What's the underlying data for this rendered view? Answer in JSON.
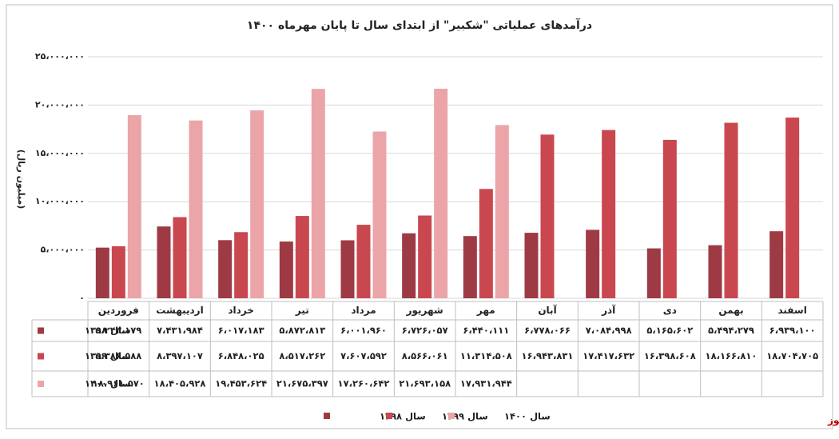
{
  "chart_data": {
    "type": "bar",
    "title": "درآمدهای عملیاتی \"شکبیر\" از ابتدای سال تا پایان مهرماه ۱۴۰۰",
    "y_label": "(میلیون ریال)",
    "source": "بورس نیوز",
    "categories": [
      "فروردین",
      "اردیبهشت",
      "خرداد",
      "تیر",
      "مرداد",
      "شهریور",
      "مهر",
      "آبان",
      "آذر",
      "دی",
      "بهمن",
      "اسفند"
    ],
    "series": [
      {
        "name": "سال ۱۳۹۸",
        "color": "#9e3a44",
        "values": [
          5243179,
          7431984,
          6017183,
          5872813,
          6001960,
          6726057,
          6440111,
          6778066,
          7084998,
          5165602,
          5494279,
          6939100
        ],
        "value_labels": [
          "۵،۲۴۳،۱۷۹",
          "۷،۴۳۱،۹۸۴",
          "۶،۰۱۷،۱۸۳",
          "۵،۸۷۲،۸۱۳",
          "۶،۰۰۱،۹۶۰",
          "۶،۷۲۶،۰۵۷",
          "۶،۴۴۰،۱۱۱",
          "۶،۷۷۸،۰۶۶",
          "۷،۰۸۴،۹۹۸",
          "۵،۱۶۵،۶۰۲",
          "۵،۴۹۴،۲۷۹",
          "۶،۹۳۹،۱۰۰"
        ]
      },
      {
        "name": "سال ۱۳۹۹",
        "color": "#c9474f",
        "values": [
          5386588,
          8397107,
          6848025,
          8517262,
          7607592,
          8566061,
          11314508,
          16943831,
          17417632,
          16398608,
          18166810,
          18704705
        ],
        "value_labels": [
          "۵،۳۸۶،۵۸۸",
          "۸،۳۹۷،۱۰۷",
          "۶،۸۴۸،۰۲۵",
          "۸،۵۱۷،۲۶۲",
          "۷،۶۰۷،۵۹۲",
          "۸،۵۶۶،۰۶۱",
          "۱۱،۳۱۴،۵۰۸",
          "۱۶،۹۴۳،۸۳۱",
          "۱۷،۴۱۷،۶۳۲",
          "۱۶،۳۹۸،۶۰۸",
          "۱۸،۱۶۶،۸۱۰",
          "۱۸،۷۰۴،۷۰۵"
        ]
      },
      {
        "name": "سال ۱۴۰۰",
        "color": "#eba5a8",
        "values": [
          18961570,
          18405928,
          19453624,
          21675397,
          17260642,
          21693158,
          17931944,
          null,
          null,
          null,
          null,
          null
        ],
        "value_labels": [
          "۱۸،۹۶۱،۵۷۰",
          "۱۸،۴۰۵،۹۲۸",
          "۱۹،۴۵۳،۶۲۴",
          "۲۱،۶۷۵،۳۹۷",
          "۱۷،۲۶۰،۶۴۲",
          "۲۱،۶۹۳،۱۵۸",
          "۱۷،۹۳۱،۹۴۴",
          null,
          null,
          null,
          null,
          null
        ]
      }
    ],
    "ylim": [
      0,
      25000000
    ],
    "yticks": [
      {
        "value": 0,
        "label": "۰"
      },
      {
        "value": 5000000,
        "label": "۵،۰۰۰،۰۰۰"
      },
      {
        "value": 10000000,
        "label": "۱۰،۰۰۰،۰۰۰"
      },
      {
        "value": 15000000,
        "label": "۱۵،۰۰۰،۰۰۰"
      },
      {
        "value": 20000000,
        "label": "۲۰،۰۰۰،۰۰۰"
      },
      {
        "value": 25000000,
        "label": "۲۵،۰۰۰،۰۰۰"
      }
    ],
    "grid": true
  }
}
